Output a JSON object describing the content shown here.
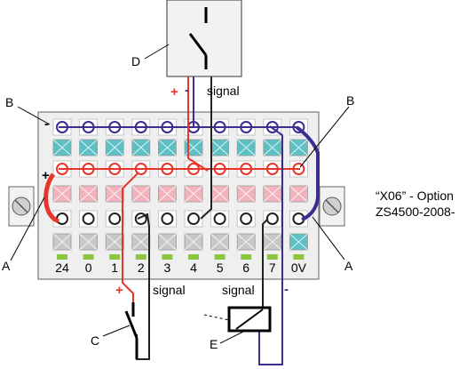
{
  "labels": {
    "switch_top": "D",
    "switch_bottom": "C",
    "relay": "E",
    "bus_left": "B",
    "bus_right": "B",
    "bridge_left": "A",
    "bridge_right": "A"
  },
  "wire_labels": {
    "top_plus": "+",
    "top_minus": "-",
    "top_signal": "signal",
    "bottom_plus": "+",
    "bottom_signal_left": "signal",
    "bottom_signal_right": "signal",
    "bottom_minus": "-",
    "row_minus": "-",
    "row_plus": "+"
  },
  "terminals": [
    "24",
    "0",
    "1",
    "2",
    "3",
    "4",
    "5",
    "6",
    "7",
    "0V"
  ],
  "note": {
    "line1": "“X06” - Option",
    "line2": "ZS4500-2008-"
  },
  "colors": {
    "red_wire": "#e8342b",
    "blue_wire": "#3a2f8f",
    "teal_pad": "#5cc0c4",
    "pink_pad": "#f2b3bc",
    "gray_pad": "#c8c8c8",
    "green_tab": "#8cc63f"
  }
}
